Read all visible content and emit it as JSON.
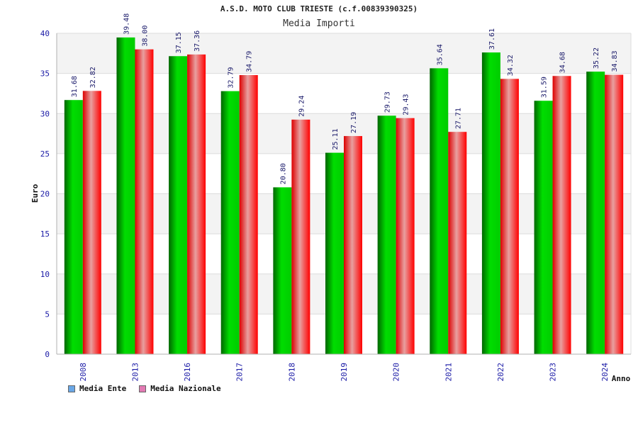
{
  "chart_data": {
    "type": "bar",
    "title": "A.S.D. MOTO CLUB TRIESTE (c.f.00839390325)",
    "subtitle": "Media Importi",
    "xlabel": "Anno",
    "ylabel": "Euro",
    "ylim": [
      0,
      40
    ],
    "yticks": [
      0,
      5,
      10,
      15,
      20,
      25,
      30,
      35,
      40
    ],
    "categories": [
      "2008",
      "2013",
      "2016",
      "2017",
      "2018",
      "2019",
      "2020",
      "2021",
      "2022",
      "2023",
      "2024"
    ],
    "series": [
      {
        "name": "Media Ente",
        "color": "#00aa00",
        "legend_color": "#6aa7e6",
        "values": [
          31.68,
          39.48,
          37.15,
          32.79,
          20.8,
          25.11,
          29.73,
          35.64,
          37.61,
          31.59,
          35.22
        ],
        "labels": [
          "31.68",
          "39.48",
          "37.15",
          "32.79",
          "20.80",
          "25.11",
          "29.73",
          "35.64",
          "37.61",
          "31.59",
          "35.22"
        ]
      },
      {
        "name": "Media Nazionale",
        "color": "#ee1111",
        "legend_color": "#e27ab3",
        "values": [
          32.82,
          38.0,
          37.36,
          34.79,
          29.24,
          27.19,
          29.43,
          27.71,
          34.32,
          34.68,
          34.83
        ],
        "labels": [
          "32.82",
          "38.00",
          "37.36",
          "34.79",
          "29.24",
          "27.19",
          "29.43",
          "27.71",
          "34.32",
          "34.68",
          "34.83"
        ]
      }
    ],
    "grid": true,
    "legend_position": "bottom-left"
  }
}
